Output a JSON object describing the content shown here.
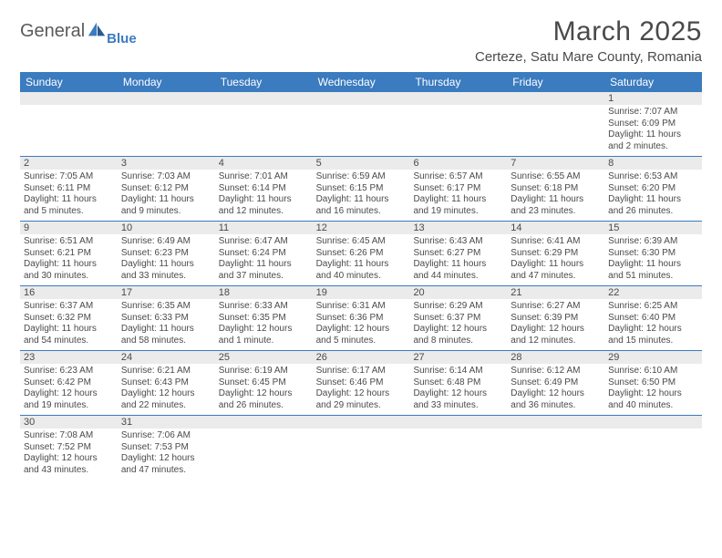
{
  "brand": {
    "name": "General",
    "sub": "Blue"
  },
  "title": "March 2025",
  "location": "Certeze, Satu Mare County, Romania",
  "colors": {
    "header_bg": "#3b7bbf",
    "header_fg": "#ffffff",
    "daynum_bg": "#ebebeb",
    "rule": "#3b7bbf",
    "text": "#4a4a4a"
  },
  "day_names": [
    "Sunday",
    "Monday",
    "Tuesday",
    "Wednesday",
    "Thursday",
    "Friday",
    "Saturday"
  ],
  "weeks": [
    [
      null,
      null,
      null,
      null,
      null,
      null,
      {
        "n": "1",
        "sr": "Sunrise: 7:07 AM",
        "ss": "Sunset: 6:09 PM",
        "dl1": "Daylight: 11 hours",
        "dl2": "and 2 minutes."
      }
    ],
    [
      {
        "n": "2",
        "sr": "Sunrise: 7:05 AM",
        "ss": "Sunset: 6:11 PM",
        "dl1": "Daylight: 11 hours",
        "dl2": "and 5 minutes."
      },
      {
        "n": "3",
        "sr": "Sunrise: 7:03 AM",
        "ss": "Sunset: 6:12 PM",
        "dl1": "Daylight: 11 hours",
        "dl2": "and 9 minutes."
      },
      {
        "n": "4",
        "sr": "Sunrise: 7:01 AM",
        "ss": "Sunset: 6:14 PM",
        "dl1": "Daylight: 11 hours",
        "dl2": "and 12 minutes."
      },
      {
        "n": "5",
        "sr": "Sunrise: 6:59 AM",
        "ss": "Sunset: 6:15 PM",
        "dl1": "Daylight: 11 hours",
        "dl2": "and 16 minutes."
      },
      {
        "n": "6",
        "sr": "Sunrise: 6:57 AM",
        "ss": "Sunset: 6:17 PM",
        "dl1": "Daylight: 11 hours",
        "dl2": "and 19 minutes."
      },
      {
        "n": "7",
        "sr": "Sunrise: 6:55 AM",
        "ss": "Sunset: 6:18 PM",
        "dl1": "Daylight: 11 hours",
        "dl2": "and 23 minutes."
      },
      {
        "n": "8",
        "sr": "Sunrise: 6:53 AM",
        "ss": "Sunset: 6:20 PM",
        "dl1": "Daylight: 11 hours",
        "dl2": "and 26 minutes."
      }
    ],
    [
      {
        "n": "9",
        "sr": "Sunrise: 6:51 AM",
        "ss": "Sunset: 6:21 PM",
        "dl1": "Daylight: 11 hours",
        "dl2": "and 30 minutes."
      },
      {
        "n": "10",
        "sr": "Sunrise: 6:49 AM",
        "ss": "Sunset: 6:23 PM",
        "dl1": "Daylight: 11 hours",
        "dl2": "and 33 minutes."
      },
      {
        "n": "11",
        "sr": "Sunrise: 6:47 AM",
        "ss": "Sunset: 6:24 PM",
        "dl1": "Daylight: 11 hours",
        "dl2": "and 37 minutes."
      },
      {
        "n": "12",
        "sr": "Sunrise: 6:45 AM",
        "ss": "Sunset: 6:26 PM",
        "dl1": "Daylight: 11 hours",
        "dl2": "and 40 minutes."
      },
      {
        "n": "13",
        "sr": "Sunrise: 6:43 AM",
        "ss": "Sunset: 6:27 PM",
        "dl1": "Daylight: 11 hours",
        "dl2": "and 44 minutes."
      },
      {
        "n": "14",
        "sr": "Sunrise: 6:41 AM",
        "ss": "Sunset: 6:29 PM",
        "dl1": "Daylight: 11 hours",
        "dl2": "and 47 minutes."
      },
      {
        "n": "15",
        "sr": "Sunrise: 6:39 AM",
        "ss": "Sunset: 6:30 PM",
        "dl1": "Daylight: 11 hours",
        "dl2": "and 51 minutes."
      }
    ],
    [
      {
        "n": "16",
        "sr": "Sunrise: 6:37 AM",
        "ss": "Sunset: 6:32 PM",
        "dl1": "Daylight: 11 hours",
        "dl2": "and 54 minutes."
      },
      {
        "n": "17",
        "sr": "Sunrise: 6:35 AM",
        "ss": "Sunset: 6:33 PM",
        "dl1": "Daylight: 11 hours",
        "dl2": "and 58 minutes."
      },
      {
        "n": "18",
        "sr": "Sunrise: 6:33 AM",
        "ss": "Sunset: 6:35 PM",
        "dl1": "Daylight: 12 hours",
        "dl2": "and 1 minute."
      },
      {
        "n": "19",
        "sr": "Sunrise: 6:31 AM",
        "ss": "Sunset: 6:36 PM",
        "dl1": "Daylight: 12 hours",
        "dl2": "and 5 minutes."
      },
      {
        "n": "20",
        "sr": "Sunrise: 6:29 AM",
        "ss": "Sunset: 6:37 PM",
        "dl1": "Daylight: 12 hours",
        "dl2": "and 8 minutes."
      },
      {
        "n": "21",
        "sr": "Sunrise: 6:27 AM",
        "ss": "Sunset: 6:39 PM",
        "dl1": "Daylight: 12 hours",
        "dl2": "and 12 minutes."
      },
      {
        "n": "22",
        "sr": "Sunrise: 6:25 AM",
        "ss": "Sunset: 6:40 PM",
        "dl1": "Daylight: 12 hours",
        "dl2": "and 15 minutes."
      }
    ],
    [
      {
        "n": "23",
        "sr": "Sunrise: 6:23 AM",
        "ss": "Sunset: 6:42 PM",
        "dl1": "Daylight: 12 hours",
        "dl2": "and 19 minutes."
      },
      {
        "n": "24",
        "sr": "Sunrise: 6:21 AM",
        "ss": "Sunset: 6:43 PM",
        "dl1": "Daylight: 12 hours",
        "dl2": "and 22 minutes."
      },
      {
        "n": "25",
        "sr": "Sunrise: 6:19 AM",
        "ss": "Sunset: 6:45 PM",
        "dl1": "Daylight: 12 hours",
        "dl2": "and 26 minutes."
      },
      {
        "n": "26",
        "sr": "Sunrise: 6:17 AM",
        "ss": "Sunset: 6:46 PM",
        "dl1": "Daylight: 12 hours",
        "dl2": "and 29 minutes."
      },
      {
        "n": "27",
        "sr": "Sunrise: 6:14 AM",
        "ss": "Sunset: 6:48 PM",
        "dl1": "Daylight: 12 hours",
        "dl2": "and 33 minutes."
      },
      {
        "n": "28",
        "sr": "Sunrise: 6:12 AM",
        "ss": "Sunset: 6:49 PM",
        "dl1": "Daylight: 12 hours",
        "dl2": "and 36 minutes."
      },
      {
        "n": "29",
        "sr": "Sunrise: 6:10 AM",
        "ss": "Sunset: 6:50 PM",
        "dl1": "Daylight: 12 hours",
        "dl2": "and 40 minutes."
      }
    ],
    [
      {
        "n": "30",
        "sr": "Sunrise: 7:08 AM",
        "ss": "Sunset: 7:52 PM",
        "dl1": "Daylight: 12 hours",
        "dl2": "and 43 minutes."
      },
      {
        "n": "31",
        "sr": "Sunrise: 7:06 AM",
        "ss": "Sunset: 7:53 PM",
        "dl1": "Daylight: 12 hours",
        "dl2": "and 47 minutes."
      },
      null,
      null,
      null,
      null,
      null
    ]
  ]
}
